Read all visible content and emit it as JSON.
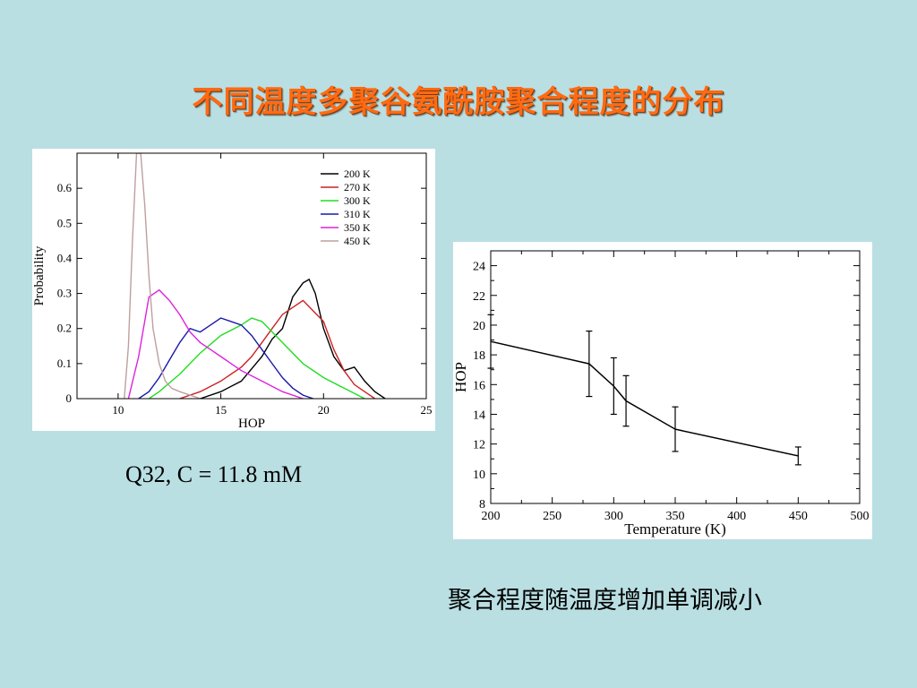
{
  "title": "不同温度多聚谷氨酰胺聚合程度的分布",
  "caption_left": "Q32, C = 11.8 mM",
  "caption_right": "聚合程度随温度增加单调减小",
  "chart_data": [
    {
      "type": "line",
      "xlabel": "HOP",
      "ylabel": "Probability",
      "xlim": [
        8,
        25
      ],
      "ylim": [
        0,
        0.7
      ],
      "xticks": [
        "10",
        "15",
        "20",
        "25"
      ],
      "yticks": [
        "0",
        "0.1",
        "0.2",
        "0.3",
        "0.4",
        "0.5",
        "0.6"
      ],
      "legend_position": "top-right",
      "series": [
        {
          "name": "200 K",
          "color": "#000000",
          "x": [
            14,
            15,
            16,
            17,
            17.5,
            18,
            18.5,
            19,
            19.3,
            19.6,
            20,
            20.5,
            21,
            21.5,
            22,
            22.5,
            23
          ],
          "y": [
            0.0,
            0.02,
            0.05,
            0.12,
            0.17,
            0.2,
            0.29,
            0.33,
            0.34,
            0.3,
            0.2,
            0.12,
            0.08,
            0.09,
            0.05,
            0.02,
            0.0
          ]
        },
        {
          "name": "270 K",
          "color": "#cc2222",
          "x": [
            13,
            14,
            15,
            16,
            16.5,
            17,
            17.5,
            18,
            18.5,
            19,
            19.5,
            20,
            20.5,
            21,
            21.5,
            22,
            22.5
          ],
          "y": [
            0.0,
            0.02,
            0.05,
            0.09,
            0.12,
            0.16,
            0.2,
            0.24,
            0.26,
            0.28,
            0.25,
            0.22,
            0.14,
            0.08,
            0.04,
            0.02,
            0.0
          ]
        },
        {
          "name": "300 K",
          "color": "#22dd22",
          "x": [
            11.5,
            12,
            13,
            14,
            15,
            16,
            16.5,
            17,
            18,
            19,
            20,
            21,
            22
          ],
          "y": [
            0.0,
            0.02,
            0.07,
            0.13,
            0.18,
            0.21,
            0.23,
            0.22,
            0.16,
            0.1,
            0.06,
            0.03,
            0.0
          ]
        },
        {
          "name": "310 K",
          "color": "#1a1aaa",
          "x": [
            11,
            11.5,
            12,
            12.5,
            13,
            13.5,
            14,
            14.5,
            15,
            15.5,
            16,
            16.5,
            17,
            17.5,
            18,
            18.5,
            19,
            19.5
          ],
          "y": [
            0.0,
            0.02,
            0.06,
            0.11,
            0.16,
            0.2,
            0.19,
            0.21,
            0.23,
            0.22,
            0.21,
            0.18,
            0.14,
            0.1,
            0.06,
            0.03,
            0.01,
            0.0
          ]
        },
        {
          "name": "350 K",
          "color": "#dd22dd",
          "x": [
            10.5,
            11,
            11.5,
            12,
            12.5,
            13,
            13.5,
            14,
            14.5,
            15,
            15.5,
            16,
            17,
            18,
            19
          ],
          "y": [
            0.0,
            0.12,
            0.29,
            0.31,
            0.28,
            0.24,
            0.19,
            0.16,
            0.14,
            0.12,
            0.1,
            0.08,
            0.05,
            0.02,
            0.0
          ]
        },
        {
          "name": "450 K",
          "color": "#bf9f9f",
          "x": [
            10.3,
            10.5,
            10.7,
            10.9,
            11.1,
            11.3,
            11.5,
            11.7,
            12,
            12.3,
            12.6,
            13,
            13.5,
            14
          ],
          "y": [
            0.0,
            0.15,
            0.45,
            0.7,
            0.7,
            0.55,
            0.35,
            0.2,
            0.1,
            0.05,
            0.03,
            0.02,
            0.01,
            0.0
          ]
        }
      ]
    },
    {
      "type": "line",
      "xlabel": "Temperature (K)",
      "ylabel": "HOP",
      "xlim": [
        200,
        500
      ],
      "ylim": [
        8,
        25
      ],
      "xticks": [
        "200",
        "250",
        "300",
        "350",
        "400",
        "450",
        "500"
      ],
      "yticks": [
        "8",
        "10",
        "12",
        "14",
        "16",
        "18",
        "20",
        "22",
        "24"
      ],
      "series": [
        {
          "x": [
            200,
            280,
            300,
            310,
            350,
            450
          ],
          "y": [
            18.9,
            17.4,
            15.9,
            14.9,
            13.0,
            11.2
          ],
          "error": [
            1.8,
            2.2,
            1.9,
            1.7,
            1.5,
            0.6
          ],
          "color": "#000000"
        }
      ]
    }
  ]
}
